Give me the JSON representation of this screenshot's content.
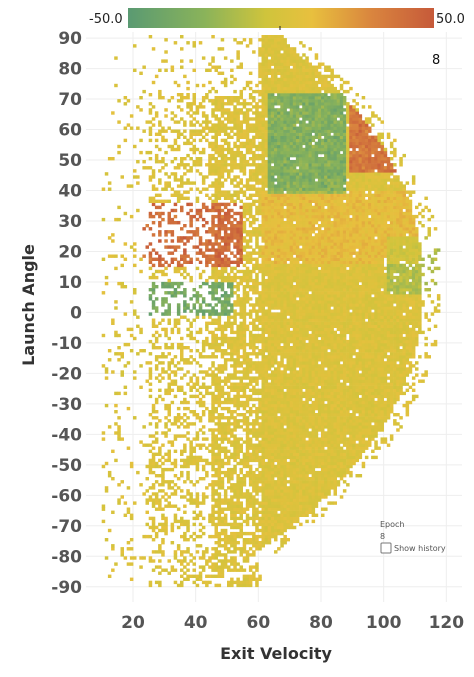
{
  "chart_data": {
    "type": "heatmap",
    "xlabel": "Exit Velocity",
    "ylabel": "Launch Angle",
    "xlim": [
      5,
      125
    ],
    "ylim": [
      -95,
      92
    ],
    "x_ticks": [
      "20",
      "40",
      "60",
      "80",
      "100",
      "120"
    ],
    "y_ticks": [
      "90",
      "80",
      "70",
      "60",
      "50",
      "40",
      "30",
      "20",
      "10",
      "0",
      "-10",
      "-20",
      "-30",
      "-40",
      "-50",
      "-60",
      "-70",
      "-80",
      "-90"
    ],
    "color_scale": {
      "min_label": "-50.0",
      "max_label": "50.0",
      "min": -50,
      "max": 50,
      "colors": [
        "#5a9a72",
        "#8ab35a",
        "#cfc43c",
        "#e8c03e",
        "#d9843e",
        "#c65a3a"
      ]
    },
    "grid": true,
    "regions_description": [
      {
        "exit_velocity_range": [
          58,
          112
        ],
        "launch_angle_range": [
          -90,
          90
        ],
        "value_level": "near 0 (yellow)"
      },
      {
        "exit_velocity_range": [
          65,
          85
        ],
        "launch_angle_range": [
          40,
          70
        ],
        "value_level": "negative (green)"
      },
      {
        "exit_velocity_range": [
          25,
          55
        ],
        "launch_angle_range": [
          15,
          35
        ],
        "value_level": "positive (orange-red)"
      },
      {
        "exit_velocity_range": [
          90,
          108
        ],
        "launch_angle_range": [
          45,
          80
        ],
        "value_level": "positive (orange-red)"
      },
      {
        "exit_velocity_range": [
          25,
          50
        ],
        "launch_angle_range": [
          0,
          10
        ],
        "value_level": "negative (green)"
      }
    ]
  },
  "legend": {
    "min_label": "-50.0",
    "max_label": "50.0"
  },
  "epoch": {
    "corner_value": "8",
    "label": "Epoch",
    "value": "8",
    "history_label": "Show history"
  }
}
